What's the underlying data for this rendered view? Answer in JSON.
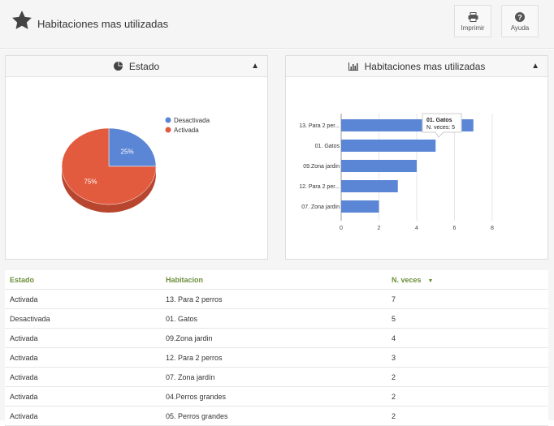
{
  "header": {
    "title": "Habitaciones mas utilizadas",
    "print_label": "Imprimir",
    "help_label": "Ayuda"
  },
  "pie_panel": {
    "title": "Estado"
  },
  "bar_panel": {
    "title": "Habitaciones mas utilizadas",
    "tooltip": {
      "title": "01. Gatos",
      "text": "N. veces: 5"
    }
  },
  "chart_data": [
    {
      "type": "pie",
      "legend": [
        "Desactivada",
        "Activada"
      ],
      "values": [
        25,
        75
      ],
      "labels": [
        "25%",
        "75%"
      ],
      "colors": [
        "#5b86d6",
        "#e35b3e"
      ],
      "legend_position": "right"
    },
    {
      "type": "bar",
      "orientation": "horizontal",
      "categories": [
        "13. Para 2 per...",
        "01. Gatos",
        "09.Zona jardin",
        "12. Para 2 per...",
        "07. Zona jardin"
      ],
      "values": [
        7,
        5,
        4,
        3,
        2
      ],
      "xlim": [
        0,
        8
      ],
      "ticks": [
        "0",
        "2",
        "4",
        "6",
        "8"
      ],
      "color": "#5b86d6",
      "grid": true
    }
  ],
  "table": {
    "headers": [
      "Estado",
      "Habitacion",
      "N. veces"
    ],
    "rows": [
      [
        "Activada",
        "13. Para 2 perros",
        "7"
      ],
      [
        "Desactivada",
        "01. Gatos",
        "5"
      ],
      [
        "Activada",
        "09.Zona jardin",
        "4"
      ],
      [
        "Activada",
        "12. Para 2 perros",
        "3"
      ],
      [
        "Activada",
        "07. Zona jardín",
        "2"
      ],
      [
        "Activada",
        "04.Perros grandes",
        "2"
      ],
      [
        "Activada",
        "05. Perros grandes",
        "2"
      ]
    ]
  }
}
